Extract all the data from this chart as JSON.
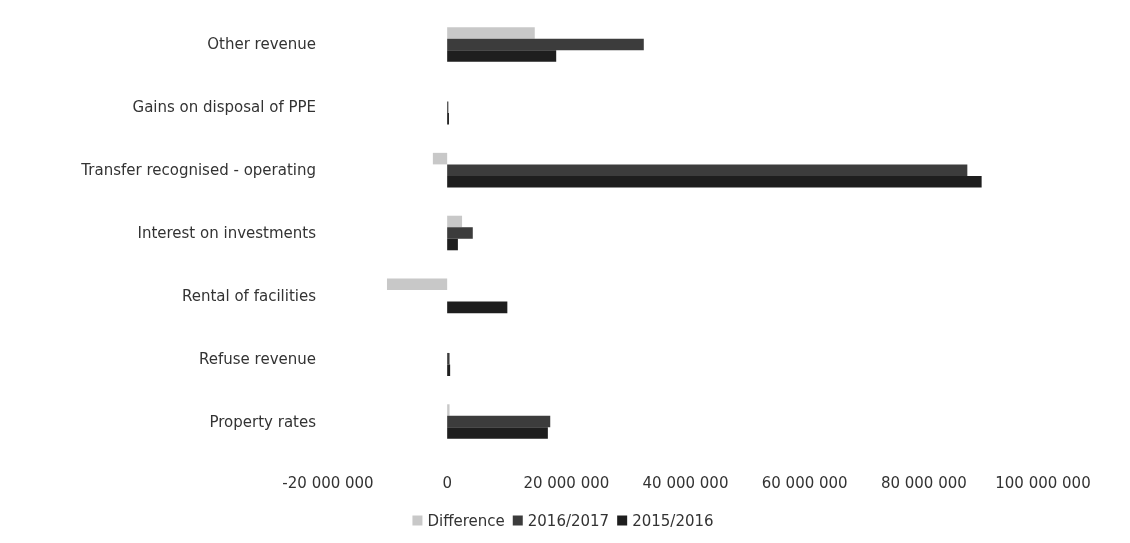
{
  "chart_data": {
    "type": "bar",
    "orientation": "horizontal",
    "categories": [
      "Other revenue",
      "Gains on disposal of PPE",
      "Transfer recognised - operating",
      "Interest on investments",
      "Rental of facilities",
      "Refuse revenue",
      "Property rates"
    ],
    "series": [
      {
        "name": "Difference",
        "color": "#c8c8c8",
        "values": [
          14700000,
          null,
          -2400000,
          2500000,
          -10100000,
          null,
          400000
        ]
      },
      {
        "name": "2016/2017",
        "color": "#3c3c3c",
        "values": [
          33000000,
          200000,
          87300000,
          4300000,
          0,
          400000,
          17300000
        ]
      },
      {
        "name": "2015/2016",
        "color": "#1e1e1e",
        "values": [
          18300000,
          300000,
          89700000,
          1800000,
          10100000,
          500000,
          16900000
        ]
      }
    ],
    "xlim": [
      -20000000,
      100000000
    ],
    "xticks": [
      {
        "value": -20000000,
        "label": "-20 000 000"
      },
      {
        "value": 0,
        "label": "0"
      },
      {
        "value": 20000000,
        "label": "20 000 000"
      },
      {
        "value": 40000000,
        "label": "40 000 000"
      },
      {
        "value": 60000000,
        "label": "60 000 000"
      },
      {
        "value": 80000000,
        "label": "80 000 000"
      },
      {
        "value": 100000000,
        "label": "100 000 000"
      }
    ],
    "grid": false,
    "legend": "bottom"
  }
}
